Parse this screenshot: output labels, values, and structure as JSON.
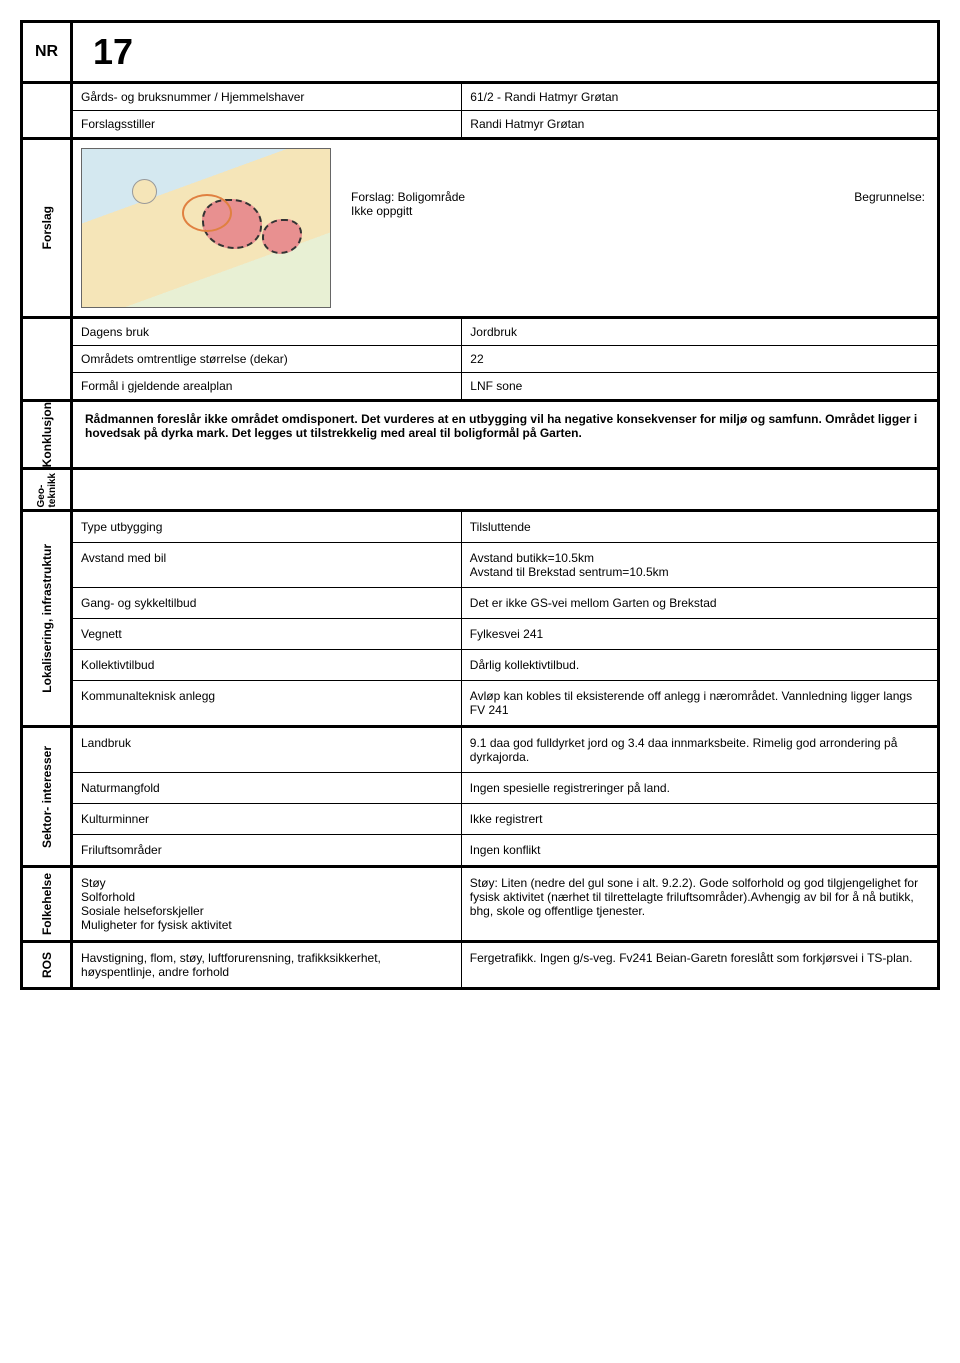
{
  "header": {
    "nr_label": "NR",
    "number": "17"
  },
  "gards": {
    "label": "Gårds- og bruksnummer / Hjemmelshaver",
    "value": "61/2  - Randi Hatmyr Grøtan",
    "forslagsstiller_label": "Forslagsstiller",
    "forslagsstiller_value": "Randi Hatmyr Grøtan"
  },
  "forslag": {
    "side_label": "Forslag",
    "text": "Forslag: Boligområde\nIkke oppgitt",
    "begrunnelse_label": "Begrunnelse:"
  },
  "dagens": {
    "bruk_label": "Dagens bruk",
    "bruk_value": "Jordbruk",
    "storrelse_label": "Områdets omtrentlige størrelse (dekar)",
    "storrelse_value": "22",
    "formal_label": "Formål i gjeldende arealplan",
    "formal_value": "LNF sone"
  },
  "konklusjon": {
    "side_label": "Konklusjon",
    "text": "Rådmannen foreslår ikke området omdisponert. Det vurderes at en utbygging vil ha negative konsekvenser for miljø og samfunn. Området ligger i hovedsak på dyrka mark. Det legges ut tilstrekkelig med areal til boligformål på Garten."
  },
  "geoteknikk": {
    "side_label": "Geo-\nteknikk"
  },
  "lokalisering": {
    "side_label": "Lokalisering, infrastruktur",
    "rows": [
      {
        "label": "Type utbygging",
        "value": "Tilsluttende"
      },
      {
        "label": "Avstand med bil",
        "value": "Avstand butikk=10.5km\nAvstand til Brekstad sentrum=10.5km"
      },
      {
        "label": "Gang- og sykkeltilbud",
        "value": "Det er ikke GS-vei mellom Garten og Brekstad"
      },
      {
        "label": "Vegnett",
        "value": "Fylkesvei 241"
      },
      {
        "label": "Kollektivtilbud",
        "value": " Dårlig kollektivtilbud."
      },
      {
        "label": "Kommunalteknisk anlegg",
        "value": "Avløp kan kobles til eksisterende off anlegg i nærområdet. Vannledning ligger langs FV 241"
      }
    ]
  },
  "sektor": {
    "side_label": "Sektor- interesser",
    "rows": [
      {
        "label": "Landbruk",
        "value": "9.1 daa god fulldyrket jord og 3.4 daa innmarksbeite. Rimelig god arrondering på dyrkajorda."
      },
      {
        "label": "Naturmangfold",
        "value": "Ingen spesielle registreringer på land."
      },
      {
        "label": "Kulturminner",
        "value": "Ikke registrert"
      },
      {
        "label": "Friluftsområder",
        "value": "Ingen konflikt"
      }
    ]
  },
  "folkehelse": {
    "side_label": "Folkehelse",
    "left": "Støy\nSolforhold\nSosiale helseforskjeller\nMuligheter for fysisk aktivitet",
    "right": "Støy: Liten (nedre del gul sone i alt. 9.2.2). Gode solforhold og god tilgjengelighet for fysisk aktivitet (nærhet til tilrettelagte friluftsområder).Avhengig av bil for å nå butikk, bhg, skole og offentlige tjenester."
  },
  "ros": {
    "side_label": "ROS",
    "left": "Havstigning, flom, støy, luftforurensning, trafikksikkerhet, høyspentlinje, andre forhold",
    "right": "Fergetrafikk. Ingen g/s-veg. Fv241 Beian-Garetn foreslått som forkjørsvei i TS-plan."
  }
}
